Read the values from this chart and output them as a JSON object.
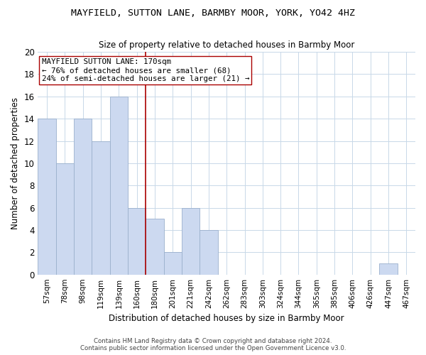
{
  "title": "MAYFIELD, SUTTON LANE, BARMBY MOOR, YORK, YO42 4HZ",
  "subtitle": "Size of property relative to detached houses in Barmby Moor",
  "xlabel": "Distribution of detached houses by size in Barmby Moor",
  "ylabel": "Number of detached properties",
  "bin_labels": [
    "57sqm",
    "78sqm",
    "98sqm",
    "119sqm",
    "139sqm",
    "160sqm",
    "180sqm",
    "201sqm",
    "221sqm",
    "242sqm",
    "262sqm",
    "283sqm",
    "303sqm",
    "324sqm",
    "344sqm",
    "365sqm",
    "385sqm",
    "406sqm",
    "426sqm",
    "447sqm",
    "467sqm"
  ],
  "bar_heights": [
    14,
    10,
    14,
    12,
    16,
    6,
    5,
    2,
    6,
    4,
    0,
    0,
    0,
    0,
    0,
    0,
    0,
    0,
    0,
    1,
    0
  ],
  "bar_color": "#ccd9f0",
  "bar_edge_color": "#9ab0cc",
  "vline_x": 5.5,
  "vline_color": "#aa0000",
  "annotation_title": "MAYFIELD SUTTON LANE: 170sqm",
  "annotation_line1": "← 76% of detached houses are smaller (68)",
  "annotation_line2": "24% of semi-detached houses are larger (21) →",
  "annotation_box_color": "white",
  "annotation_box_edge": "#aa0000",
  "ylim": [
    0,
    20
  ],
  "yticks": [
    0,
    2,
    4,
    6,
    8,
    10,
    12,
    14,
    16,
    18,
    20
  ],
  "footer1": "Contains HM Land Registry data © Crown copyright and database right 2024.",
  "footer2": "Contains public sector information licensed under the Open Government Licence v3.0.",
  "bg_color": "white",
  "grid_color": "#c8d8e8"
}
